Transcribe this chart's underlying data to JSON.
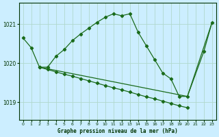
{
  "title": "Graphe pression niveau de la mer (hPa)",
  "bg_color": "#cceeff",
  "grid_color": "#b0d8cc",
  "line_color": "#1a6b1a",
  "xlabel_color": "#003300",
  "ylabel_ticks": [
    1019,
    1020,
    1021
  ],
  "xlim": [
    -0.5,
    23.5
  ],
  "ylim": [
    1018.55,
    1021.55
  ],
  "xticks": [
    0,
    1,
    2,
    3,
    4,
    5,
    6,
    7,
    8,
    9,
    10,
    11,
    12,
    13,
    14,
    15,
    16,
    17,
    18,
    19,
    20,
    21,
    22,
    23
  ],
  "series1_x": [
    0,
    1,
    2,
    3,
    4,
    5,
    6,
    7,
    8,
    9,
    10,
    11,
    12,
    13,
    14,
    15,
    16,
    17,
    18,
    19,
    20,
    22,
    23
  ],
  "series1_y": [
    1020.65,
    1020.4,
    1019.9,
    1019.9,
    1020.18,
    1020.35,
    1020.58,
    1020.75,
    1020.9,
    1021.05,
    1021.18,
    1021.27,
    1021.22,
    1021.27,
    1020.8,
    1020.45,
    1020.1,
    1019.75,
    1019.6,
    1019.15,
    1019.15,
    1020.3,
    1021.05
  ],
  "series2_x": [
    2,
    3,
    4,
    5,
    6,
    7,
    8,
    9,
    10,
    11,
    12,
    13,
    14,
    15,
    16,
    17,
    18,
    19,
    20
  ],
  "series2_y": [
    1019.9,
    1019.84,
    1019.78,
    1019.72,
    1019.67,
    1019.61,
    1019.55,
    1019.49,
    1019.43,
    1019.37,
    1019.32,
    1019.26,
    1019.2,
    1019.14,
    1019.09,
    1019.03,
    1018.97,
    1018.91,
    1018.86
  ],
  "series3_x": [
    2,
    20,
    23
  ],
  "series3_y": [
    1019.9,
    1019.15,
    1021.05
  ]
}
